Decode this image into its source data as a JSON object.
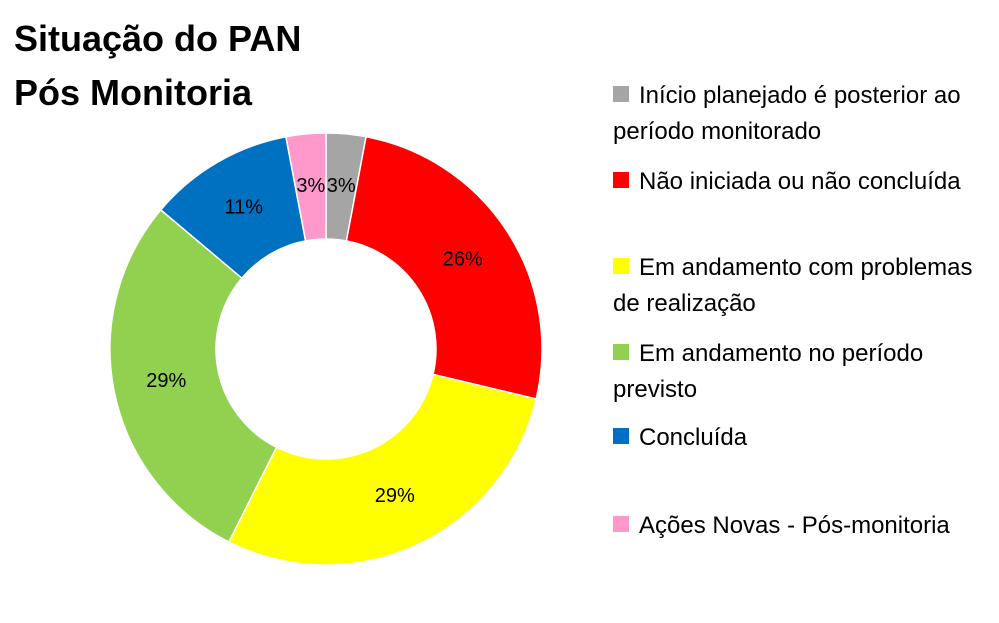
{
  "chart_data": {
    "type": "donut",
    "title": [
      "Situação do PAN",
      "Pós Monitoria"
    ],
    "categories": [
      "Início planejado é posterior ao período monitorado",
      "Não iniciada ou não concluída",
      "Em andamento com problemas de realização",
      "Em andamento no período previsto",
      "Concluída",
      "Ações Novas - Pós-monitoria"
    ],
    "values": [
      3,
      26,
      29,
      29,
      11,
      3
    ],
    "value_labels": [
      "3%",
      "26%",
      "29%",
      "29%",
      "11%",
      "3%"
    ],
    "colors": [
      "#a5a5a5",
      "#ff0000",
      "#ffff00",
      "#92d050",
      "#0070c0",
      "#ff99cc"
    ],
    "legend": "right"
  }
}
